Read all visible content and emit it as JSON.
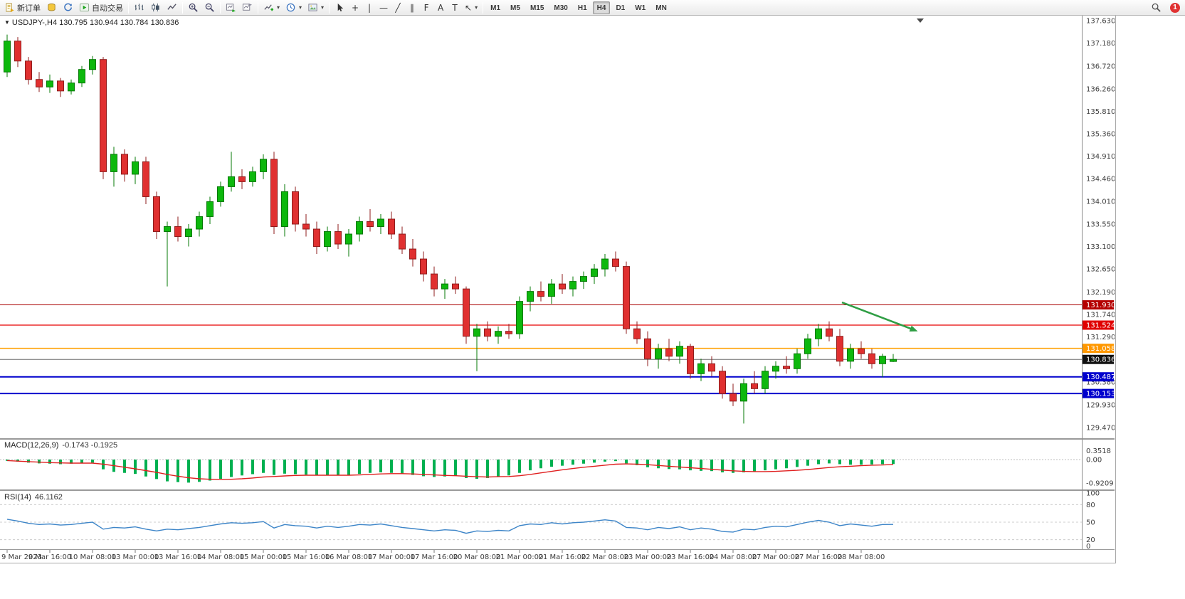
{
  "toolbar": {
    "new_order_label": "新订单",
    "auto_trading_label": "自动交易",
    "timeframes": [
      "M1",
      "M5",
      "M15",
      "M30",
      "H1",
      "H4",
      "D1",
      "W1",
      "MN"
    ],
    "active_timeframe": "H4",
    "notification_count": "1"
  },
  "icons": {
    "caret": "▾",
    "menu_caret": "▼",
    "crosshair": "+",
    "vertical_line": "|",
    "horizontal_line": "—",
    "trend_line": "╱",
    "channel": "∥",
    "fibonacci": "F",
    "text_tool": "A",
    "label_tool": "T",
    "arrow_tool": "↖"
  },
  "chart": {
    "title": "USDJPY-,H4 130.795 130.944 130.784 130.836"
  },
  "chart_data": {
    "type": "candlestick",
    "symbol": "USDJPY-",
    "timeframe": "H4",
    "ohlc_display": {
      "open": "130.795",
      "high": "130.944",
      "low": "130.784",
      "close": "130.836"
    },
    "price_axis": {
      "max": 137.63,
      "min": 129.47
    },
    "y_axis_labels": [
      "137.630",
      "137.180",
      "136.720",
      "136.260",
      "135.810",
      "135.360",
      "134.910",
      "134.460",
      "134.010",
      "133.550",
      "133.100",
      "132.650",
      "132.190",
      "131.740",
      "131.290",
      "130.380",
      "129.930",
      "129.470"
    ],
    "time_label_step": 4,
    "time_labels": [
      "9 Mar 2023",
      "9 Mar 16:00",
      "10 Mar 08:00",
      "13 Mar 00:00",
      "13 Mar 16:00",
      "14 Mar 08:00",
      "15 Mar 00:00",
      "15 Mar 16:00",
      "16 Mar 08:00",
      "17 Mar 00:00",
      "17 Mar 16:00",
      "20 Mar 08:00",
      "21 Mar 00:00",
      "21 Mar 16:00",
      "22 Mar 08:00",
      "23 Mar 00:00",
      "23 Mar 16:00",
      "24 Mar 08:00",
      "27 Mar 00:00",
      "27 Mar 16:00",
      "28 Mar 08:00"
    ],
    "candles": [
      [
        136.6,
        137.35,
        136.5,
        137.22
      ],
      [
        137.22,
        137.3,
        136.7,
        136.82
      ],
      [
        136.82,
        136.9,
        136.35,
        136.45
      ],
      [
        136.45,
        136.6,
        136.2,
        136.3
      ],
      [
        136.3,
        136.55,
        136.18,
        136.42
      ],
      [
        136.42,
        136.48,
        136.1,
        136.22
      ],
      [
        136.22,
        136.45,
        136.15,
        136.38
      ],
      [
        136.38,
        136.72,
        136.3,
        136.65
      ],
      [
        136.65,
        136.92,
        136.55,
        136.85
      ],
      [
        136.85,
        136.9,
        134.45,
        134.6
      ],
      [
        134.6,
        135.1,
        134.3,
        134.95
      ],
      [
        134.95,
        135.05,
        134.4,
        134.55
      ],
      [
        134.55,
        134.9,
        134.35,
        134.8
      ],
      [
        134.8,
        134.9,
        133.95,
        134.1
      ],
      [
        134.1,
        134.2,
        133.25,
        133.4
      ],
      [
        133.4,
        133.6,
        132.3,
        133.5
      ],
      [
        133.5,
        133.7,
        133.2,
        133.3
      ],
      [
        133.3,
        133.55,
        133.1,
        133.45
      ],
      [
        133.45,
        133.8,
        133.3,
        133.7
      ],
      [
        133.7,
        134.1,
        133.55,
        134.0
      ],
      [
        134.0,
        134.4,
        133.9,
        134.3
      ],
      [
        134.3,
        135.0,
        134.2,
        134.5
      ],
      [
        134.5,
        134.65,
        134.25,
        134.4
      ],
      [
        134.4,
        134.7,
        134.3,
        134.6
      ],
      [
        134.6,
        134.95,
        134.45,
        134.85
      ],
      [
        134.85,
        135.0,
        133.35,
        133.5
      ],
      [
        133.5,
        134.35,
        133.3,
        134.2
      ],
      [
        134.2,
        134.3,
        133.4,
        133.55
      ],
      [
        133.55,
        133.75,
        133.3,
        133.45
      ],
      [
        133.45,
        133.6,
        132.95,
        133.1
      ],
      [
        133.1,
        133.5,
        133.0,
        133.4
      ],
      [
        133.4,
        133.55,
        133.05,
        133.15
      ],
      [
        133.15,
        133.45,
        132.9,
        133.35
      ],
      [
        133.35,
        133.7,
        133.2,
        133.6
      ],
      [
        133.6,
        133.85,
        133.4,
        133.5
      ],
      [
        133.5,
        133.75,
        133.35,
        133.65
      ],
      [
        133.65,
        133.8,
        133.25,
        133.35
      ],
      [
        133.35,
        133.5,
        132.95,
        133.05
      ],
      [
        133.05,
        133.25,
        132.7,
        132.85
      ],
      [
        132.85,
        133.0,
        132.4,
        132.55
      ],
      [
        132.55,
        132.7,
        132.1,
        132.25
      ],
      [
        132.25,
        132.45,
        132.05,
        132.35
      ],
      [
        132.35,
        132.5,
        132.15,
        132.25
      ],
      [
        132.25,
        132.3,
        131.15,
        131.3
      ],
      [
        131.3,
        131.55,
        130.6,
        131.45
      ],
      [
        131.45,
        131.6,
        131.2,
        131.3
      ],
      [
        131.3,
        131.5,
        131.15,
        131.4
      ],
      [
        131.4,
        131.55,
        131.25,
        131.35
      ],
      [
        131.35,
        132.1,
        131.25,
        132.0
      ],
      [
        132.0,
        132.3,
        131.8,
        132.2
      ],
      [
        132.2,
        132.4,
        132.0,
        132.1
      ],
      [
        132.1,
        132.45,
        131.95,
        132.35
      ],
      [
        132.35,
        132.55,
        132.15,
        132.25
      ],
      [
        132.25,
        132.5,
        132.1,
        132.4
      ],
      [
        132.4,
        132.6,
        132.25,
        132.5
      ],
      [
        132.5,
        132.75,
        132.35,
        132.65
      ],
      [
        132.65,
        132.95,
        132.5,
        132.85
      ],
      [
        132.85,
        133.0,
        132.6,
        132.7
      ],
      [
        132.7,
        132.8,
        131.35,
        131.45
      ],
      [
        131.45,
        131.6,
        131.15,
        131.25
      ],
      [
        131.25,
        131.4,
        130.7,
        130.85
      ],
      [
        130.85,
        131.15,
        130.65,
        131.05
      ],
      [
        131.05,
        131.25,
        130.8,
        130.9
      ],
      [
        130.9,
        131.2,
        130.75,
        131.1
      ],
      [
        131.1,
        131.15,
        130.45,
        130.55
      ],
      [
        130.55,
        130.85,
        130.4,
        130.75
      ],
      [
        130.75,
        130.9,
        130.5,
        130.6
      ],
      [
        130.6,
        130.7,
        130.05,
        130.15
      ],
      [
        130.15,
        130.35,
        129.9,
        130.0
      ],
      [
        130.0,
        130.45,
        129.55,
        130.35
      ],
      [
        130.35,
        130.6,
        130.15,
        130.25
      ],
      [
        130.25,
        130.7,
        130.15,
        130.6
      ],
      [
        130.6,
        130.8,
        130.45,
        130.7
      ],
      [
        130.7,
        130.9,
        130.55,
        130.65
      ],
      [
        130.65,
        131.05,
        130.55,
        130.95
      ],
      [
        130.95,
        131.35,
        130.85,
        131.25
      ],
      [
        131.25,
        131.55,
        131.1,
        131.45
      ],
      [
        131.45,
        131.6,
        131.2,
        131.3
      ],
      [
        131.3,
        131.45,
        130.7,
        130.8
      ],
      [
        130.8,
        131.15,
        130.65,
        131.05
      ],
      [
        131.05,
        131.2,
        130.85,
        130.95
      ],
      [
        130.95,
        131.05,
        130.65,
        130.75
      ],
      [
        130.75,
        130.95,
        130.48,
        130.9
      ],
      [
        130.795,
        130.944,
        130.784,
        130.836
      ]
    ],
    "hlines": [
      {
        "price": 131.93,
        "label": "131.930",
        "color": "#a80000",
        "badge": "#b50000",
        "width": 1
      },
      {
        "price": 131.524,
        "label": "131.524",
        "color": "#e80000",
        "badge": "#e00000",
        "width": 1.2
      },
      {
        "price": 131.058,
        "label": "131.058",
        "color": "#ffa000",
        "badge": "#ff9800",
        "width": 1.5
      },
      {
        "price": 130.836,
        "label": "130.836",
        "color": "#6b6b6b",
        "badge": "#111111",
        "width": 1
      },
      {
        "price": 130.487,
        "label": "130.487",
        "color": "#0000cd",
        "badge": "#0000cd",
        "width": 2
      },
      {
        "price": 130.153,
        "label": "130.153",
        "color": "#0000cd",
        "badge": "#0000cd",
        "width": 2
      }
    ],
    "arrow": {
      "from_candle": 78.2,
      "from_price": 131.98,
      "to_candle": 85.3,
      "to_price": 131.4,
      "color": "#2f9e44"
    },
    "macd": {
      "label": "MACD(12,26,9)",
      "values_text": "-0.1743 -0.1925",
      "scale": [
        "0.3518",
        "0.00",
        "-0.9209"
      ],
      "histogram": [
        -0.05,
        -0.08,
        -0.12,
        -0.15,
        -0.16,
        -0.18,
        -0.16,
        -0.14,
        -0.12,
        -0.38,
        -0.48,
        -0.52,
        -0.56,
        -0.66,
        -0.76,
        -0.85,
        -0.88,
        -0.9,
        -0.87,
        -0.82,
        -0.75,
        -0.68,
        -0.62,
        -0.57,
        -0.52,
        -0.6,
        -0.55,
        -0.57,
        -0.59,
        -0.62,
        -0.6,
        -0.62,
        -0.6,
        -0.56,
        -0.52,
        -0.5,
        -0.52,
        -0.56,
        -0.6,
        -0.65,
        -0.68,
        -0.66,
        -0.64,
        -0.72,
        -0.75,
        -0.72,
        -0.68,
        -0.62,
        -0.52,
        -0.42,
        -0.34,
        -0.28,
        -0.24,
        -0.2,
        -0.16,
        -0.12,
        -0.08,
        -0.06,
        -0.15,
        -0.22,
        -0.3,
        -0.34,
        -0.37,
        -0.38,
        -0.42,
        -0.44,
        -0.45,
        -0.5,
        -0.52,
        -0.5,
        -0.46,
        -0.42,
        -0.38,
        -0.34,
        -0.29,
        -0.24,
        -0.18,
        -0.15,
        -0.18,
        -0.2,
        -0.2,
        -0.19,
        -0.18,
        -0.1743
      ],
      "signal": [
        -0.04,
        -0.06,
        -0.08,
        -0.1,
        -0.12,
        -0.13,
        -0.14,
        -0.14,
        -0.14,
        -0.18,
        -0.24,
        -0.3,
        -0.36,
        -0.43,
        -0.5,
        -0.58,
        -0.65,
        -0.71,
        -0.75,
        -0.77,
        -0.78,
        -0.77,
        -0.75,
        -0.72,
        -0.68,
        -0.66,
        -0.64,
        -0.62,
        -0.61,
        -0.61,
        -0.61,
        -0.61,
        -0.61,
        -0.6,
        -0.58,
        -0.56,
        -0.55,
        -0.55,
        -0.56,
        -0.58,
        -0.6,
        -0.62,
        -0.63,
        -0.65,
        -0.67,
        -0.68,
        -0.67,
        -0.66,
        -0.63,
        -0.58,
        -0.52,
        -0.46,
        -0.4,
        -0.35,
        -0.3,
        -0.26,
        -0.22,
        -0.18,
        -0.17,
        -0.18,
        -0.2,
        -0.23,
        -0.26,
        -0.29,
        -0.32,
        -0.35,
        -0.38,
        -0.41,
        -0.44,
        -0.46,
        -0.47,
        -0.47,
        -0.46,
        -0.44,
        -0.42,
        -0.39,
        -0.35,
        -0.31,
        -0.28,
        -0.26,
        -0.24,
        -0.22,
        -0.21,
        -0.1925
      ]
    },
    "rsi": {
      "label": "RSI(14)",
      "value_text": "46.1162",
      "scale": [
        "100",
        "80",
        "50",
        "20",
        "0"
      ],
      "levels": [
        80,
        50,
        20
      ],
      "values": [
        55,
        52,
        48,
        46,
        47,
        45,
        46,
        48,
        50,
        38,
        41,
        40,
        42,
        38,
        35,
        38,
        37,
        39,
        41,
        44,
        47,
        49,
        48,
        49,
        51,
        40,
        46,
        44,
        43,
        40,
        43,
        41,
        43,
        46,
        45,
        47,
        44,
        41,
        39,
        37,
        35,
        37,
        36,
        31,
        35,
        34,
        36,
        35,
        44,
        47,
        46,
        49,
        47,
        49,
        50,
        52,
        54,
        52,
        41,
        40,
        37,
        41,
        39,
        42,
        37,
        40,
        38,
        34,
        33,
        38,
        37,
        41,
        43,
        42,
        46,
        50,
        53,
        50,
        44,
        47,
        45,
        43,
        46,
        46.1
      ]
    },
    "colors": {
      "bull": "#0db80d",
      "bull_stroke": "#067806",
      "bear": "#e03030",
      "bear_stroke": "#8f1d1d",
      "macd_hist": "#00b050",
      "macd_signal": "#e02020",
      "rsi": "#3d85c8"
    }
  }
}
